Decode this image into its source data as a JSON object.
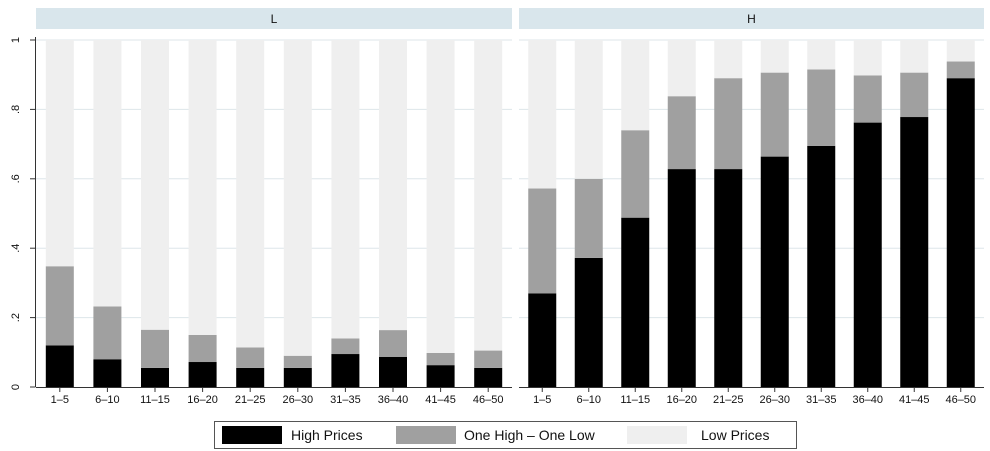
{
  "chart_data": {
    "type": "bar",
    "stacked": true,
    "stack_normalized": true,
    "categories": [
      "1–5",
      "6–10",
      "11–15",
      "16–20",
      "21–25",
      "26–30",
      "31–35",
      "36–40",
      "41–45",
      "46–50"
    ],
    "ylim": [
      0,
      1
    ],
    "yticks": [
      0,
      0.2,
      0.4,
      0.6,
      0.8,
      1
    ],
    "ytick_labels": [
      "0",
      ".2",
      ".4",
      ".6",
      ".8",
      "1"
    ],
    "grid": true,
    "legend": {
      "placement": "bottom",
      "entries": [
        "High Prices",
        "One High – One Low",
        "Low Prices"
      ]
    },
    "colors": {
      "High Prices": "#000000",
      "One High – One Low": "#a0a0a0",
      "Low Prices": "#efefef",
      "strip": "#d9e6ec",
      "grid": "#dde6ea"
    },
    "panels": [
      {
        "title": "L",
        "series": [
          {
            "name": "High Prices",
            "values": [
              0.12,
              0.08,
              0.055,
              0.072,
              0.055,
              0.055,
              0.095,
              0.087,
              0.063,
              0.055
            ]
          },
          {
            "name": "One High – One Low",
            "values": [
              0.228,
              0.152,
              0.11,
              0.078,
              0.059,
              0.035,
              0.045,
              0.077,
              0.035,
              0.05
            ]
          },
          {
            "name": "Low Prices",
            "values": [
              0.652,
              0.768,
              0.835,
              0.85,
              0.886,
              0.91,
              0.86,
              0.836,
              0.902,
              0.895
            ]
          }
        ]
      },
      {
        "title": "H",
        "series": [
          {
            "name": "High Prices",
            "values": [
              0.27,
              0.372,
              0.488,
              0.628,
              0.628,
              0.664,
              0.695,
              0.762,
              0.778,
              0.89
            ]
          },
          {
            "name": "One High – One Low",
            "values": [
              0.302,
              0.228,
              0.252,
              0.21,
              0.262,
              0.242,
              0.22,
              0.136,
              0.128,
              0.048
            ]
          },
          {
            "name": "Low Prices",
            "values": [
              0.428,
              0.4,
              0.26,
              0.162,
              0.11,
              0.094,
              0.085,
              0.102,
              0.094,
              0.062
            ]
          }
        ]
      }
    ]
  }
}
